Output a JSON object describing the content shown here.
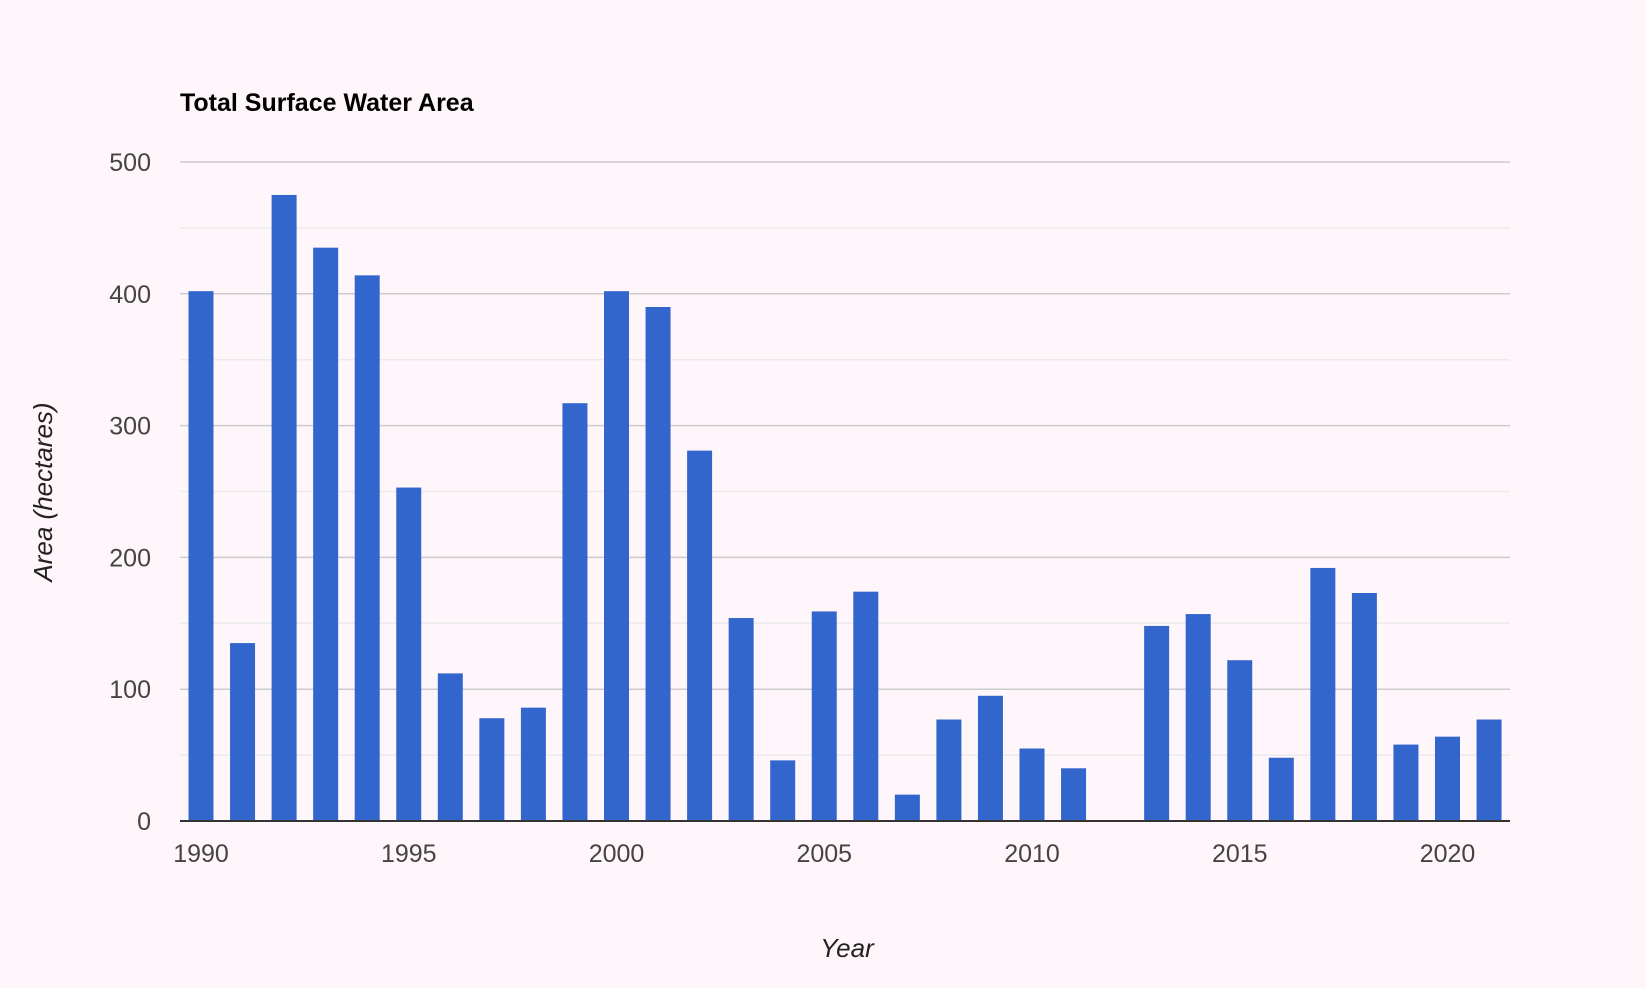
{
  "chart_data": {
    "type": "bar",
    "title": "Total Surface Water Area",
    "xlabel": "Year",
    "ylabel": "Area (hectares)",
    "ylim": [
      0,
      500
    ],
    "y_ticks": [
      0,
      100,
      200,
      300,
      400,
      500
    ],
    "x_ticks": [
      1990,
      1995,
      2000,
      2005,
      2010,
      2015,
      2020
    ],
    "grid": true,
    "legend": "none",
    "bar_color": "#3366cc",
    "series": [
      {
        "x": [
          1990,
          1991,
          1992,
          1993,
          1994,
          1995,
          1996,
          1997,
          1998,
          1999,
          2000,
          2001,
          2002,
          2003,
          2004,
          2005,
          2006,
          2007,
          2008,
          2009,
          2010,
          2011,
          2013,
          2014,
          2015,
          2016,
          2017,
          2018,
          2019,
          2020,
          2021
        ],
        "values": [
          402,
          135,
          475,
          435,
          414,
          253,
          112,
          78,
          86,
          317,
          402,
          390,
          281,
          154,
          46,
          159,
          174,
          20,
          77,
          95,
          55,
          40,
          148,
          157,
          122,
          48,
          192,
          173,
          58,
          64,
          77
        ]
      }
    ]
  }
}
